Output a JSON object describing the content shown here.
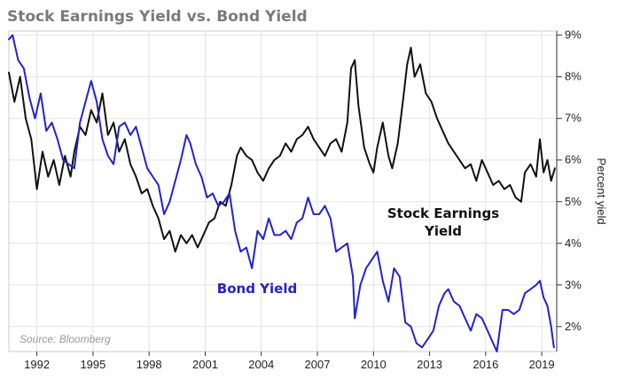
{
  "chart_data": {
    "type": "line",
    "title": "Stock Earnings Yield vs. Bond Yield",
    "ylabel": "Percent yield",
    "source": "Source: Bloomberg",
    "xlim": [
      1990.5,
      2019.8
    ],
    "ylim": [
      1.4,
      9.1
    ],
    "x_ticks": [
      1992,
      1995,
      1998,
      2001,
      2004,
      2007,
      2010,
      2013,
      2016,
      2019
    ],
    "x_tick_labels": [
      "1992",
      "1995",
      "1998",
      "2001",
      "2004",
      "2007",
      "2010",
      "2013",
      "2016",
      "2019"
    ],
    "y_ticks": [
      2,
      3,
      4,
      5,
      6,
      7,
      8,
      9
    ],
    "y_tick_labels": [
      "2%",
      "3%",
      "4%",
      "5%",
      "6%",
      "7%",
      "8%",
      "9%"
    ],
    "y_axis_position": "right",
    "grid": true,
    "series": [
      {
        "name": "Stock Earnings Yield",
        "label_lines": [
          "Stock Earnings",
          "Yield"
        ],
        "color": "#111111",
        "points": [
          [
            1990.5,
            8.1
          ],
          [
            1990.8,
            7.4
          ],
          [
            1991.1,
            8.0
          ],
          [
            1991.4,
            7.0
          ],
          [
            1991.7,
            6.5
          ],
          [
            1992.0,
            5.3
          ],
          [
            1992.3,
            6.2
          ],
          [
            1992.6,
            5.6
          ],
          [
            1992.9,
            6.0
          ],
          [
            1993.2,
            5.4
          ],
          [
            1993.5,
            6.1
          ],
          [
            1993.8,
            5.6
          ],
          [
            1994.0,
            6.2
          ],
          [
            1994.3,
            6.8
          ],
          [
            1994.6,
            6.6
          ],
          [
            1994.9,
            7.2
          ],
          [
            1995.2,
            6.9
          ],
          [
            1995.5,
            7.6
          ],
          [
            1995.8,
            6.6
          ],
          [
            1996.1,
            6.9
          ],
          [
            1996.4,
            6.2
          ],
          [
            1996.7,
            6.5
          ],
          [
            1997.0,
            5.9
          ],
          [
            1997.3,
            5.6
          ],
          [
            1997.6,
            5.2
          ],
          [
            1997.9,
            5.3
          ],
          [
            1998.2,
            4.9
          ],
          [
            1998.5,
            4.6
          ],
          [
            1998.8,
            4.1
          ],
          [
            1999.1,
            4.3
          ],
          [
            1999.4,
            3.8
          ],
          [
            1999.7,
            4.2
          ],
          [
            2000.0,
            4.0
          ],
          [
            2000.3,
            4.2
          ],
          [
            2000.6,
            3.9
          ],
          [
            2000.9,
            4.2
          ],
          [
            2001.2,
            4.5
          ],
          [
            2001.5,
            4.6
          ],
          [
            2001.8,
            5.0
          ],
          [
            2002.1,
            4.9
          ],
          [
            2002.4,
            5.4
          ],
          [
            2002.7,
            6.1
          ],
          [
            2002.9,
            6.3
          ],
          [
            2003.2,
            6.1
          ],
          [
            2003.5,
            6.0
          ],
          [
            2003.8,
            5.7
          ],
          [
            2004.1,
            5.5
          ],
          [
            2004.4,
            5.8
          ],
          [
            2004.7,
            6.0
          ],
          [
            2005.0,
            6.1
          ],
          [
            2005.3,
            6.4
          ],
          [
            2005.6,
            6.2
          ],
          [
            2005.9,
            6.5
          ],
          [
            2006.2,
            6.6
          ],
          [
            2006.5,
            6.8
          ],
          [
            2006.8,
            6.5
          ],
          [
            2007.1,
            6.3
          ],
          [
            2007.4,
            6.1
          ],
          [
            2007.7,
            6.4
          ],
          [
            2008.0,
            6.5
          ],
          [
            2008.3,
            6.2
          ],
          [
            2008.6,
            6.9
          ],
          [
            2008.8,
            8.2
          ],
          [
            2009.0,
            8.4
          ],
          [
            2009.2,
            7.3
          ],
          [
            2009.5,
            6.3
          ],
          [
            2009.8,
            5.9
          ],
          [
            2010.0,
            5.7
          ],
          [
            2010.2,
            6.3
          ],
          [
            2010.5,
            6.9
          ],
          [
            2010.8,
            6.1
          ],
          [
            2011.0,
            5.8
          ],
          [
            2011.3,
            6.4
          ],
          [
            2011.6,
            7.5
          ],
          [
            2011.8,
            8.3
          ],
          [
            2012.0,
            8.7
          ],
          [
            2012.2,
            8.0
          ],
          [
            2012.5,
            8.3
          ],
          [
            2012.8,
            7.6
          ],
          [
            2013.1,
            7.4
          ],
          [
            2013.4,
            7.0
          ],
          [
            2013.7,
            6.7
          ],
          [
            2014.0,
            6.4
          ],
          [
            2014.3,
            6.2
          ],
          [
            2014.6,
            6.0
          ],
          [
            2014.9,
            5.8
          ],
          [
            2015.2,
            5.9
          ],
          [
            2015.5,
            5.5
          ],
          [
            2015.8,
            6.0
          ],
          [
            2016.1,
            5.7
          ],
          [
            2016.4,
            5.4
          ],
          [
            2016.7,
            5.5
          ],
          [
            2017.0,
            5.3
          ],
          [
            2017.3,
            5.4
          ],
          [
            2017.6,
            5.1
          ],
          [
            2017.9,
            5.0
          ],
          [
            2018.1,
            5.7
          ],
          [
            2018.4,
            5.9
          ],
          [
            2018.7,
            5.6
          ],
          [
            2018.9,
            6.5
          ],
          [
            2019.1,
            5.7
          ],
          [
            2019.3,
            6.0
          ],
          [
            2019.5,
            5.5
          ],
          [
            2019.7,
            5.8
          ]
        ]
      },
      {
        "name": "Bond Yield",
        "color": "#2222cc",
        "points": [
          [
            1990.5,
            8.9
          ],
          [
            1990.7,
            9.0
          ],
          [
            1991.0,
            8.4
          ],
          [
            1991.3,
            8.2
          ],
          [
            1991.6,
            7.5
          ],
          [
            1991.9,
            7.0
          ],
          [
            1992.2,
            7.6
          ],
          [
            1992.5,
            6.7
          ],
          [
            1992.8,
            6.9
          ],
          [
            1993.1,
            6.5
          ],
          [
            1993.4,
            6.0
          ],
          [
            1993.7,
            5.9
          ],
          [
            1994.0,
            5.8
          ],
          [
            1994.3,
            6.9
          ],
          [
            1994.6,
            7.4
          ],
          [
            1994.9,
            7.9
          ],
          [
            1995.2,
            7.4
          ],
          [
            1995.5,
            6.5
          ],
          [
            1995.8,
            6.1
          ],
          [
            1996.1,
            5.9
          ],
          [
            1996.4,
            6.8
          ],
          [
            1996.7,
            6.9
          ],
          [
            1997.0,
            6.6
          ],
          [
            1997.3,
            6.8
          ],
          [
            1997.6,
            6.3
          ],
          [
            1997.9,
            5.8
          ],
          [
            1998.2,
            5.6
          ],
          [
            1998.5,
            5.4
          ],
          [
            1998.8,
            4.7
          ],
          [
            1999.1,
            5.0
          ],
          [
            1999.4,
            5.5
          ],
          [
            1999.7,
            6.0
          ],
          [
            2000.0,
            6.6
          ],
          [
            2000.2,
            6.4
          ],
          [
            2000.5,
            5.9
          ],
          [
            2000.8,
            5.6
          ],
          [
            2001.1,
            5.1
          ],
          [
            2001.4,
            5.2
          ],
          [
            2001.7,
            4.9
          ],
          [
            2002.0,
            5.0
          ],
          [
            2002.3,
            5.2
          ],
          [
            2002.6,
            4.3
          ],
          [
            2002.9,
            3.8
          ],
          [
            2003.2,
            3.9
          ],
          [
            2003.5,
            3.4
          ],
          [
            2003.8,
            4.3
          ],
          [
            2004.1,
            4.1
          ],
          [
            2004.4,
            4.6
          ],
          [
            2004.7,
            4.2
          ],
          [
            2005.0,
            4.2
          ],
          [
            2005.3,
            4.3
          ],
          [
            2005.6,
            4.1
          ],
          [
            2005.9,
            4.5
          ],
          [
            2006.2,
            4.6
          ],
          [
            2006.5,
            5.1
          ],
          [
            2006.8,
            4.7
          ],
          [
            2007.1,
            4.7
          ],
          [
            2007.4,
            4.9
          ],
          [
            2007.7,
            4.6
          ],
          [
            2008.0,
            3.8
          ],
          [
            2008.3,
            3.9
          ],
          [
            2008.6,
            4.0
          ],
          [
            2008.9,
            3.2
          ],
          [
            2009.0,
            2.2
          ],
          [
            2009.3,
            3.0
          ],
          [
            2009.6,
            3.4
          ],
          [
            2009.9,
            3.6
          ],
          [
            2010.2,
            3.8
          ],
          [
            2010.5,
            3.1
          ],
          [
            2010.8,
            2.6
          ],
          [
            2011.1,
            3.4
          ],
          [
            2011.4,
            3.2
          ],
          [
            2011.7,
            2.1
          ],
          [
            2012.0,
            2.0
          ],
          [
            2012.3,
            1.6
          ],
          [
            2012.6,
            1.5
          ],
          [
            2012.9,
            1.7
          ],
          [
            2013.2,
            1.9
          ],
          [
            2013.5,
            2.5
          ],
          [
            2013.8,
            2.8
          ],
          [
            2014.0,
            2.9
          ],
          [
            2014.3,
            2.6
          ],
          [
            2014.6,
            2.5
          ],
          [
            2014.9,
            2.2
          ],
          [
            2015.2,
            1.9
          ],
          [
            2015.5,
            2.3
          ],
          [
            2015.8,
            2.2
          ],
          [
            2016.1,
            1.9
          ],
          [
            2016.4,
            1.6
          ],
          [
            2016.6,
            1.4
          ],
          [
            2016.9,
            2.4
          ],
          [
            2017.2,
            2.4
          ],
          [
            2017.5,
            2.3
          ],
          [
            2017.8,
            2.4
          ],
          [
            2018.1,
            2.8
          ],
          [
            2018.4,
            2.9
          ],
          [
            2018.7,
            3.0
          ],
          [
            2018.9,
            3.1
          ],
          [
            2019.1,
            2.7
          ],
          [
            2019.3,
            2.5
          ],
          [
            2019.5,
            2.0
          ],
          [
            2019.65,
            1.5
          ]
        ]
      }
    ]
  }
}
